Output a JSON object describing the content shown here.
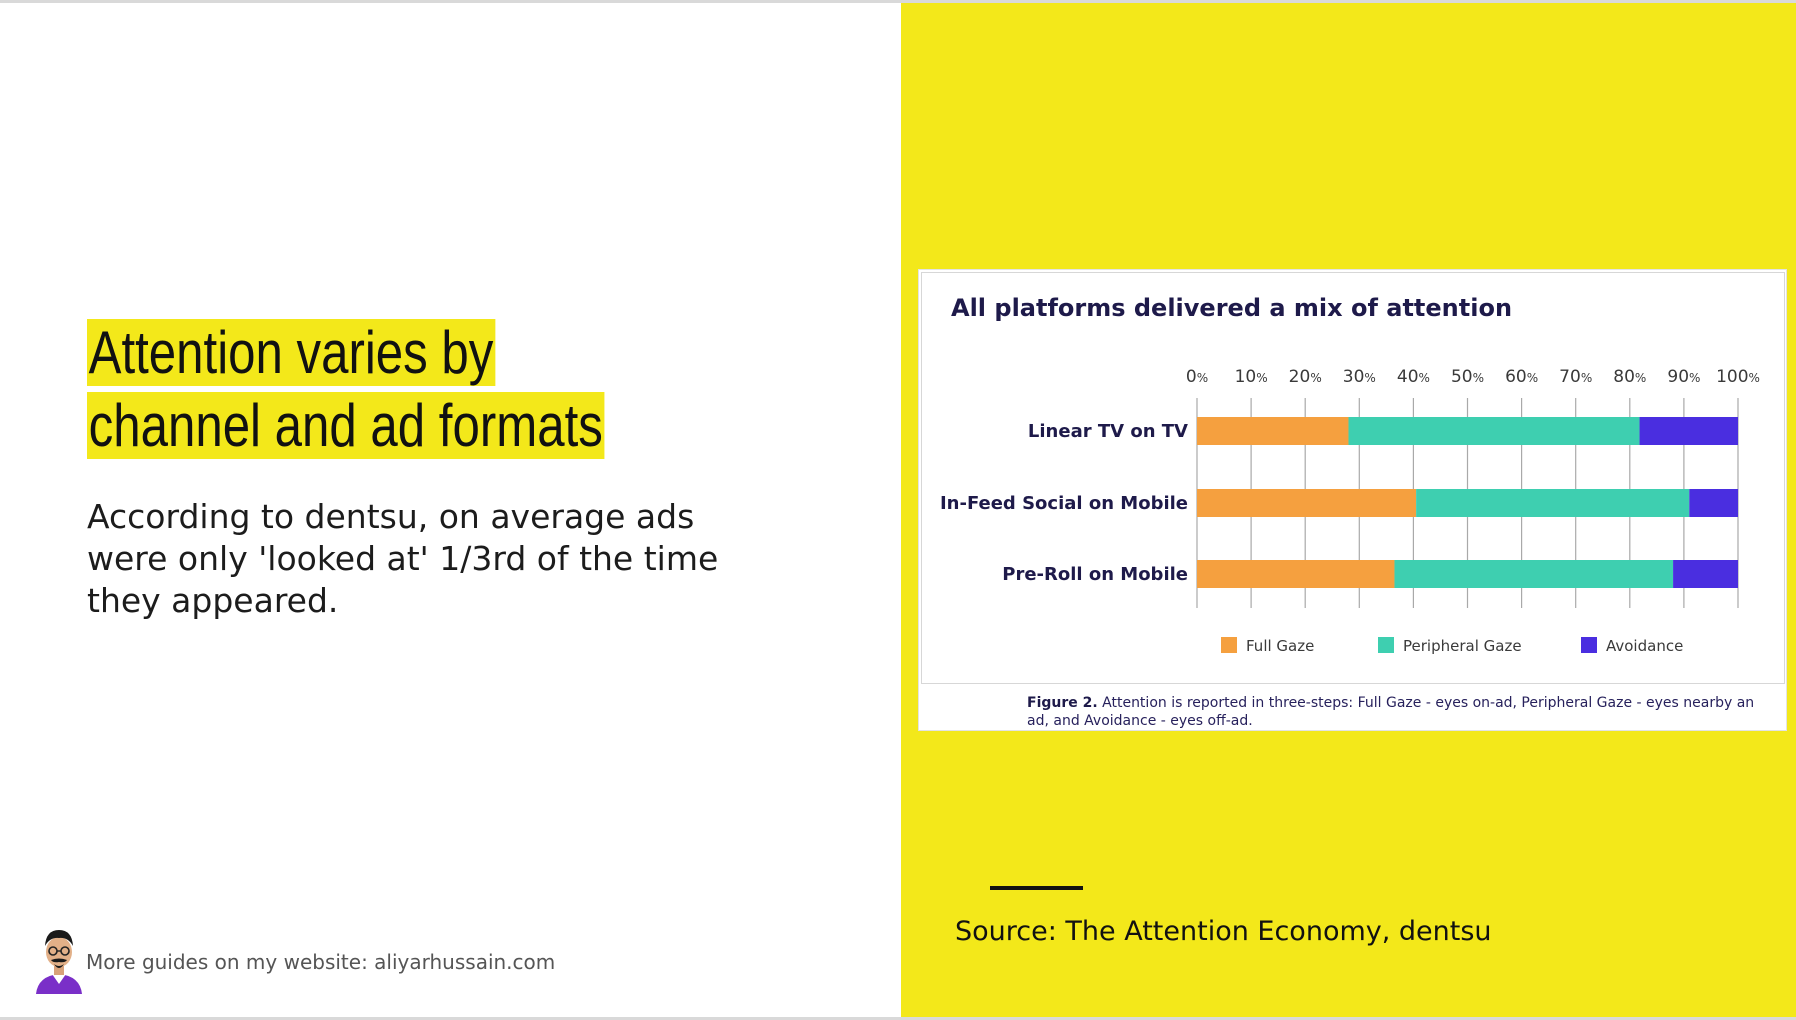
{
  "slide": {
    "title": "Attention varies by channel and ad formats",
    "body": "According to dentsu, on average ads were only 'looked at' 1/3rd of the time they appeared.",
    "footer": "More guides on my website: aliyarhussain.com",
    "source": "Source: The Attention Economy, dentsu",
    "accent_color": "#f3e81a"
  },
  "figure": {
    "caption_label": "Figure 2.",
    "caption_text": "Attention is reported in three-steps: Full Gaze - eyes on-ad, Peripheral Gaze - eyes nearby an ad, and Avoidance - eyes off-ad."
  },
  "chart_data": {
    "type": "bar",
    "orientation": "horizontal",
    "stacked": true,
    "title": "All platforms delivered a mix of attention",
    "categories": [
      "Linear TV on TV",
      "In-Feed Social on Mobile",
      "Pre-Roll on Mobile"
    ],
    "series": [
      {
        "name": "Full Gaze",
        "color": "#f5a03f",
        "values": [
          28,
          40.5,
          36.5
        ]
      },
      {
        "name": "Peripheral Gaze",
        "color": "#3ecfb0",
        "values": [
          53.8,
          50.5,
          51.5
        ]
      },
      {
        "name": "Avoidance",
        "color": "#4a2ee0",
        "values": [
          18.2,
          9,
          12
        ]
      }
    ],
    "xlim": [
      0,
      100
    ],
    "x_ticks": [
      0,
      10,
      20,
      30,
      40,
      50,
      60,
      70,
      80,
      90,
      100
    ],
    "tick_unit": "%",
    "axis_position": "top",
    "grid": true,
    "legend_position": "bottom"
  }
}
